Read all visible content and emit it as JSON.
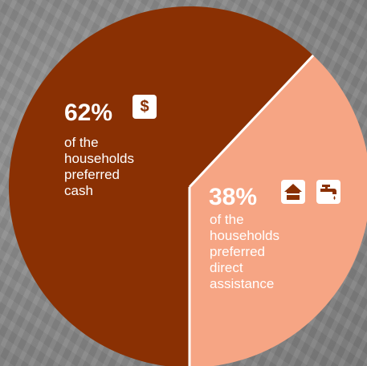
{
  "colors": {
    "cash": "#8a3003",
    "direct": "#f6a584",
    "icon_bg": "#ffffff"
  },
  "chart_data": {
    "type": "pie",
    "title": "",
    "slices": [
      {
        "label": "62%",
        "value": 62,
        "color": "#8a3003",
        "icons": [
          "dollar-icon"
        ],
        "text": [
          "of the",
          "households",
          "preferred",
          "cash"
        ]
      },
      {
        "label": "38%",
        "value": 38,
        "color": "#f6a584",
        "icons": [
          "house-icon",
          "water-tap-icon"
        ],
        "text": [
          "of the",
          "households",
          "preferred",
          "direct",
          "assistance"
        ]
      }
    ]
  },
  "icons": {
    "dollar_symbol": "$"
  }
}
